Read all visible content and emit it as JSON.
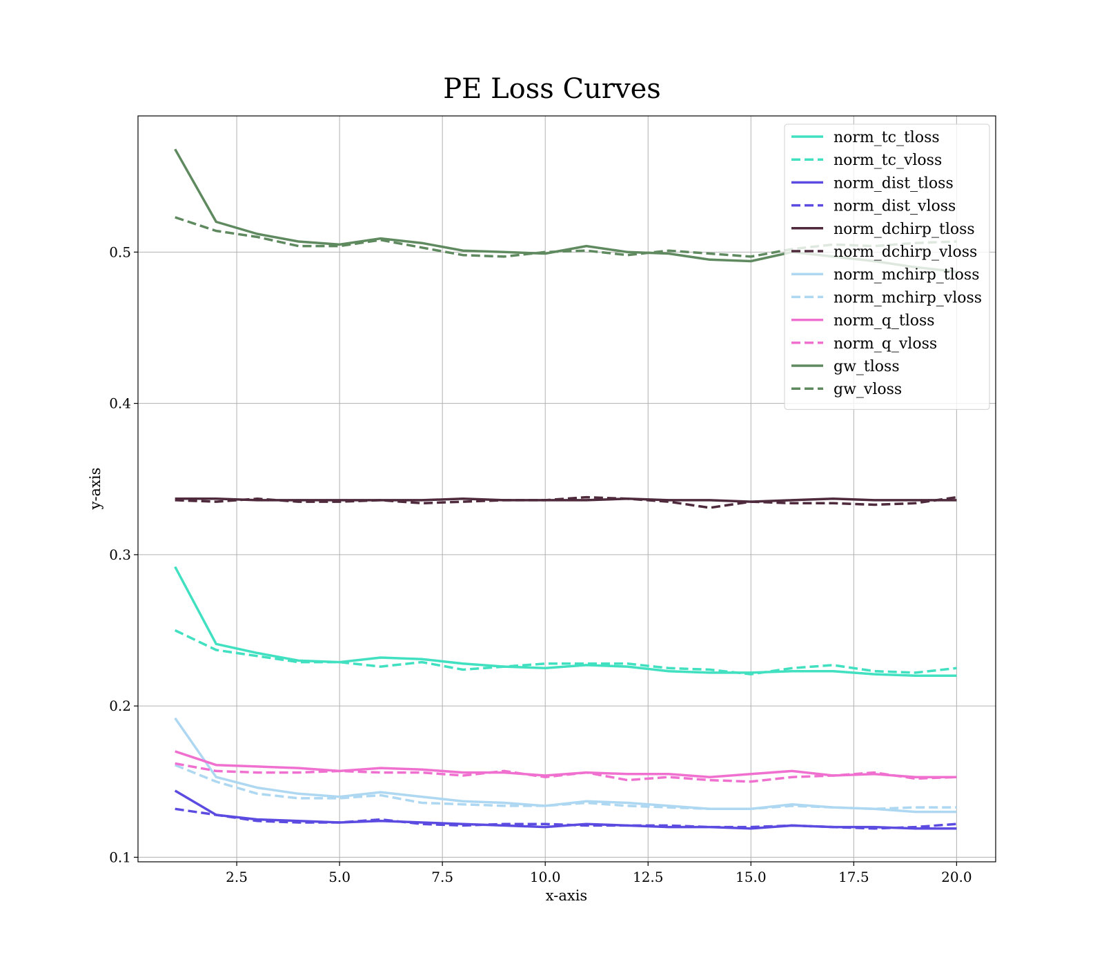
{
  "chart_data": {
    "type": "line",
    "title": "PE Loss Curves",
    "xlabel": "x-axis",
    "ylabel": "y-axis",
    "xlim": [
      0.1,
      20.95
    ],
    "ylim": [
      0.097,
      0.59
    ],
    "xticks": [
      2.5,
      5.0,
      7.5,
      10.0,
      12.5,
      15.0,
      17.5,
      20.0
    ],
    "xtick_labels": [
      "2.5",
      "5.0",
      "7.5",
      "10.0",
      "12.5",
      "15.0",
      "17.5",
      "20.0"
    ],
    "yticks": [
      0.1,
      0.2,
      0.3,
      0.4,
      0.5
    ],
    "ytick_labels": [
      "0.1",
      "0.2",
      "0.3",
      "0.4",
      "0.5"
    ],
    "grid": true,
    "legend_position": "top-right",
    "x": [
      1,
      2,
      3,
      4,
      5,
      6,
      7,
      8,
      9,
      10,
      11,
      12,
      13,
      14,
      15,
      16,
      17,
      18,
      19,
      20
    ],
    "series": [
      {
        "name": "norm_tc_tloss",
        "color": "#40E0C0",
        "dash": "solid",
        "values": [
          0.292,
          0.241,
          0.235,
          0.23,
          0.229,
          0.232,
          0.231,
          0.228,
          0.226,
          0.225,
          0.227,
          0.226,
          0.223,
          0.222,
          0.222,
          0.223,
          0.223,
          0.221,
          0.22,
          0.22
        ]
      },
      {
        "name": "norm_tc_vloss",
        "color": "#40E0C0",
        "dash": "dashed",
        "values": [
          0.25,
          0.237,
          0.233,
          0.229,
          0.229,
          0.226,
          0.229,
          0.224,
          0.226,
          0.228,
          0.228,
          0.228,
          0.225,
          0.224,
          0.221,
          0.225,
          0.227,
          0.223,
          0.222,
          0.225
        ]
      },
      {
        "name": "norm_dist_tloss",
        "color": "#5B4BE0",
        "dash": "solid",
        "values": [
          0.144,
          0.128,
          0.125,
          0.124,
          0.123,
          0.124,
          0.123,
          0.122,
          0.121,
          0.12,
          0.122,
          0.121,
          0.12,
          0.12,
          0.119,
          0.121,
          0.12,
          0.12,
          0.119,
          0.119
        ]
      },
      {
        "name": "norm_dist_vloss",
        "color": "#5B4BE0",
        "dash": "dashed",
        "values": [
          0.132,
          0.128,
          0.124,
          0.123,
          0.123,
          0.125,
          0.122,
          0.121,
          0.122,
          0.122,
          0.121,
          0.121,
          0.121,
          0.12,
          0.12,
          0.121,
          0.12,
          0.119,
          0.12,
          0.122
        ]
      },
      {
        "name": "norm_dchirp_tloss",
        "color": "#4E2A3C",
        "dash": "solid",
        "values": [
          0.337,
          0.337,
          0.336,
          0.336,
          0.336,
          0.336,
          0.336,
          0.337,
          0.336,
          0.336,
          0.336,
          0.337,
          0.336,
          0.336,
          0.335,
          0.336,
          0.337,
          0.336,
          0.336,
          0.336
        ]
      },
      {
        "name": "norm_dchirp_vloss",
        "color": "#4E2A3C",
        "dash": "dashed",
        "values": [
          0.336,
          0.335,
          0.337,
          0.335,
          0.335,
          0.336,
          0.334,
          0.335,
          0.336,
          0.336,
          0.338,
          0.337,
          0.335,
          0.331,
          0.335,
          0.334,
          0.334,
          0.333,
          0.334,
          0.338
        ]
      },
      {
        "name": "norm_mchirp_tloss",
        "color": "#AED8F2",
        "dash": "solid",
        "values": [
          0.192,
          0.153,
          0.146,
          0.142,
          0.14,
          0.143,
          0.14,
          0.137,
          0.136,
          0.134,
          0.137,
          0.136,
          0.134,
          0.132,
          0.132,
          0.135,
          0.133,
          0.132,
          0.13,
          0.13
        ]
      },
      {
        "name": "norm_mchirp_vloss",
        "color": "#AED8F2",
        "dash": "dashed",
        "values": [
          0.161,
          0.15,
          0.142,
          0.139,
          0.139,
          0.141,
          0.136,
          0.135,
          0.134,
          0.134,
          0.136,
          0.134,
          0.133,
          0.132,
          0.132,
          0.134,
          0.133,
          0.132,
          0.133,
          0.133
        ]
      },
      {
        "name": "norm_q_tloss",
        "color": "#F070D0",
        "dash": "solid",
        "values": [
          0.17,
          0.161,
          0.16,
          0.159,
          0.157,
          0.159,
          0.158,
          0.156,
          0.156,
          0.154,
          0.156,
          0.155,
          0.155,
          0.153,
          0.155,
          0.157,
          0.154,
          0.155,
          0.153,
          0.153
        ]
      },
      {
        "name": "norm_q_vloss",
        "color": "#F070D0",
        "dash": "dashed",
        "values": [
          0.162,
          0.157,
          0.156,
          0.156,
          0.157,
          0.156,
          0.156,
          0.154,
          0.157,
          0.153,
          0.156,
          0.151,
          0.153,
          0.151,
          0.15,
          0.153,
          0.154,
          0.156,
          0.152,
          0.153
        ]
      },
      {
        "name": "gw_tloss",
        "color": "#5F8A5F",
        "dash": "solid",
        "values": [
          0.568,
          0.52,
          0.512,
          0.507,
          0.505,
          0.509,
          0.506,
          0.501,
          0.5,
          0.499,
          0.504,
          0.5,
          0.499,
          0.495,
          0.494,
          0.5,
          0.497,
          0.494,
          0.49,
          0.487
        ]
      },
      {
        "name": "gw_vloss",
        "color": "#5F8A5F",
        "dash": "dashed",
        "values": [
          0.523,
          0.514,
          0.51,
          0.504,
          0.504,
          0.508,
          0.503,
          0.498,
          0.497,
          0.5,
          0.501,
          0.498,
          0.501,
          0.499,
          0.497,
          0.502,
          0.505,
          0.504,
          0.506,
          0.507
        ]
      }
    ]
  }
}
